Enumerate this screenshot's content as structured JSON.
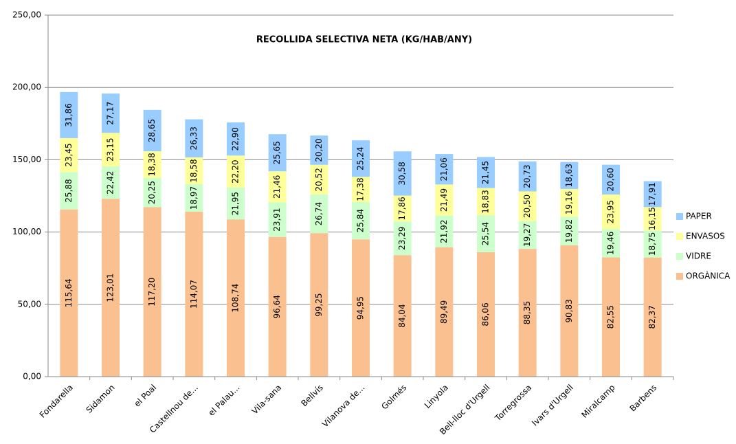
{
  "chart_data": {
    "type": "stacked_bar",
    "title": "RECOLLIDA SELECTIVA NETA (KG/HAB/ANY)",
    "categories": [
      "Fondarella",
      "Sidamon",
      "el Poal",
      "Castellnou de...",
      "el Palau...",
      "Vila-sana",
      "Bellvís",
      "Vilanova de...",
      "Golmés",
      "Linyola",
      "Bell-lloc d'Urgell",
      "Torregrossa",
      "Ivars d'Urgell",
      "Miralcamp",
      "Barbens"
    ],
    "series": [
      {
        "name": "ORGÀNICA",
        "color": "#fac090",
        "values": [
          115.64,
          123.01,
          117.2,
          114.07,
          108.74,
          96.64,
          99.25,
          94.95,
          84.04,
          89.49,
          86.06,
          88.35,
          90.83,
          82.55,
          82.37
        ],
        "value_labels": [
          "115,64",
          "123,01",
          "117,20",
          "114,07",
          "108,74",
          "96,64",
          "99,25",
          "94,95",
          "84,04",
          "89,49",
          "86,06",
          "88,35",
          "90,83",
          "82,55",
          "82,37"
        ]
      },
      {
        "name": "VIDRE",
        "color": "#ccffcc",
        "values": [
          25.88,
          22.42,
          20.25,
          18.97,
          21.95,
          23.91,
          26.74,
          25.84,
          23.29,
          21.92,
          25.54,
          19.27,
          19.82,
          19.46,
          18.75
        ],
        "value_labels": [
          "25,88",
          "22,42",
          "20,25",
          "18,97",
          "21,95",
          "23,91",
          "26,74",
          "25,84",
          "23,29",
          "21,92",
          "25,54",
          "19,27",
          "19,82",
          "19,46",
          "18,75"
        ]
      },
      {
        "name": "ENVASOS",
        "color": "#ffff99",
        "values": [
          23.45,
          23.15,
          18.38,
          18.58,
          22.2,
          21.46,
          20.52,
          17.38,
          17.86,
          21.49,
          18.83,
          20.5,
          19.16,
          23.95,
          16.15
        ],
        "value_labels": [
          "23,45",
          "23,15",
          "18,38",
          "18,58",
          "22,20",
          "21,46",
          "20,52",
          "17,38",
          "17,86",
          "21,49",
          "18,83",
          "20,50",
          "19,16",
          "23,95",
          "16,15"
        ]
      },
      {
        "name": "PAPER",
        "color": "#99ccff",
        "values": [
          31.86,
          27.17,
          28.65,
          26.33,
          22.9,
          25.65,
          20.2,
          25.24,
          30.58,
          21.06,
          21.45,
          20.73,
          18.63,
          20.6,
          17.91
        ],
        "value_labels": [
          "31,86",
          "27,17",
          "28,65",
          "26,33",
          "22,90",
          "25,65",
          "20,20",
          "25,24",
          "30,58",
          "21,06",
          "21,45",
          "20,73",
          "18,63",
          "20,60",
          "17,91"
        ]
      }
    ],
    "ylim": [
      0,
      250
    ],
    "yticks": [
      {
        "value": 0,
        "label": "0,00"
      },
      {
        "value": 50,
        "label": "50,00"
      },
      {
        "value": 100,
        "label": "100,00"
      },
      {
        "value": 150,
        "label": "150,00"
      },
      {
        "value": 200,
        "label": "200,00"
      },
      {
        "value": 250,
        "label": "250,00"
      }
    ],
    "grid": true,
    "legend": "right"
  }
}
